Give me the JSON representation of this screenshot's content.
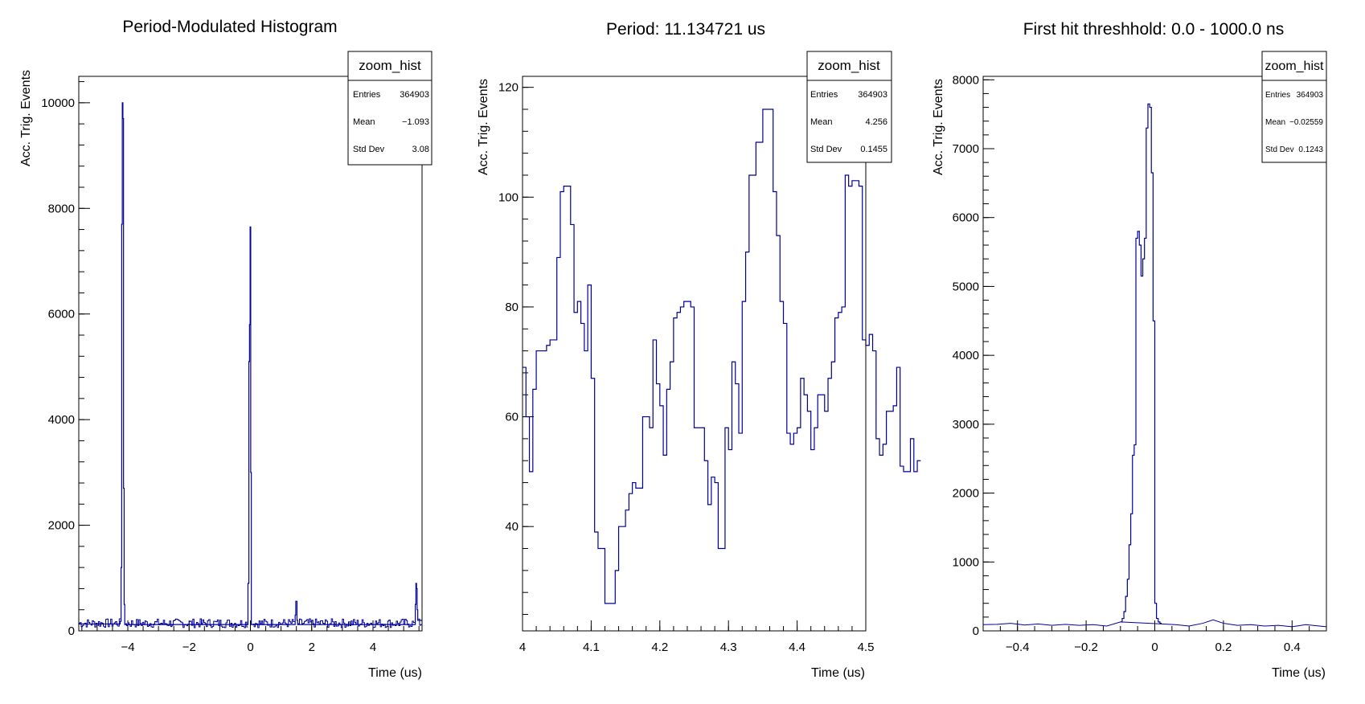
{
  "chart_data": [
    {
      "type": "histogram",
      "title": "Period-Modulated Histogram",
      "xlabel": "Time (us)",
      "ylabel": "Acc. Trig. Events",
      "xlim": [
        -5.6,
        5.6
      ],
      "ylim": [
        0,
        10500
      ],
      "xticks": [
        -4,
        -2,
        0,
        2,
        4
      ],
      "xtick_labels": [
        "−4",
        "−2",
        "0",
        "2",
        "4"
      ],
      "yticks": [
        0,
        2000,
        4000,
        6000,
        8000,
        10000
      ],
      "ytick_labels": [
        "0",
        "2000",
        "4000",
        "6000",
        "8000",
        "10000"
      ],
      "x_minor_step": 0.5,
      "y_minor_step": 400,
      "line_color": "#000099",
      "stats": {
        "name": "zoom_hist",
        "entries_label": "Entries",
        "entries": "364903",
        "mean_label": "Mean",
        "mean": "−1.093",
        "std_label": "Std Dev",
        "std": "3.08"
      },
      "series": [
        {
          "x_edges": [
            -5.6,
            -4.25,
            -4.22,
            -4.2,
            -4.18,
            -4.16,
            -4.14,
            -4.12,
            -4.1,
            -0.08,
            -0.05,
            -0.03,
            -0.01,
            0.01,
            0.03,
            1.46,
            1.48,
            1.52,
            1.54,
            5.38,
            5.4,
            5.42,
            5.44,
            5.46,
            5.6
          ],
          "values": [
            130,
            180,
            1200,
            7700,
            10000,
            9700,
            2700,
            500,
            120,
            900,
            5100,
            5800,
            7650,
            3000,
            120,
            300,
            560,
            200,
            120,
            500,
            900,
            800,
            400,
            200
          ]
        }
      ]
    },
    {
      "type": "histogram",
      "title": "Period: 11.134721 us",
      "xlabel": "Time (us)",
      "ylabel": "Acc. Trig. Events",
      "xlim": [
        4.0,
        4.5
      ],
      "ylim": [
        21,
        122
      ],
      "xticks": [
        4.0,
        4.1,
        4.2,
        4.3,
        4.4,
        4.5
      ],
      "xtick_labels": [
        "4",
        "4.1",
        "4.2",
        "4.3",
        "4.4",
        "4.5"
      ],
      "yticks": [
        40,
        60,
        80,
        100,
        120
      ],
      "ytick_labels": [
        "40",
        "60",
        "80",
        "100",
        "120"
      ],
      "x_minor_step": 0.02,
      "y_minor_step": 4,
      "line_color": "#000099",
      "stats": {
        "name": "zoom_hist",
        "entries_label": "Entries",
        "entries": "364903",
        "mean_label": "Mean",
        "mean": "4.256",
        "std_label": "Std Dev",
        "std": "0.1455"
      },
      "series": [
        {
          "x_start": 4.0,
          "bin_width": 0.005,
          "values": [
            69,
            60,
            50,
            65,
            72,
            72,
            72,
            73,
            74,
            74,
            89,
            101,
            102,
            102,
            95,
            79,
            81,
            77,
            72,
            84,
            67,
            39,
            36,
            36,
            26,
            26,
            26,
            32,
            40,
            40,
            43,
            46,
            48,
            47,
            47,
            60,
            60,
            58,
            74,
            66,
            62,
            53,
            65,
            70,
            78,
            79,
            80,
            81,
            81,
            80,
            58,
            58,
            58,
            52,
            44,
            49,
            48,
            36,
            36,
            58,
            54,
            70,
            66,
            57,
            81,
            90,
            104,
            104,
            110,
            110,
            116,
            116,
            116,
            101,
            93,
            81,
            77,
            57,
            55,
            57,
            58,
            67,
            64,
            61,
            54,
            58,
            64,
            64,
            61,
            67,
            70,
            78,
            79,
            80,
            104,
            102,
            103,
            103,
            102,
            74,
            73,
            75,
            72,
            56,
            53,
            55,
            61,
            61,
            62,
            69,
            51,
            50,
            50,
            56,
            50,
            52
          ]
        }
      ]
    },
    {
      "type": "histogram",
      "title": "First hit threshhold: 0.0 - 1000.0 ns",
      "xlabel": "Time (us)",
      "ylabel": "Acc. Trig. Events",
      "xlim": [
        -0.5,
        0.5
      ],
      "ylim": [
        0,
        8050
      ],
      "xticks": [
        -0.4,
        -0.2,
        0,
        0.2,
        0.4
      ],
      "xtick_labels": [
        "−0.4",
        "−0.2",
        "0",
        "0.2",
        "0.4"
      ],
      "yticks": [
        0,
        1000,
        2000,
        3000,
        4000,
        5000,
        6000,
        7000,
        8000
      ],
      "ytick_labels": [
        "0",
        "1000",
        "2000",
        "3000",
        "4000",
        "5000",
        "6000",
        "7000",
        "8000"
      ],
      "x_minor_step": 0.05,
      "y_minor_step": 200,
      "line_color": "#000099",
      "stats": {
        "name": "zoom_hist",
        "entries_label": "Entries",
        "entries": "364903",
        "mean_label": "Mean",
        "mean": "−0.02559",
        "std_label": "Std Dev",
        "std": "0.1243"
      },
      "series": [
        {
          "x_start": -0.1,
          "bin_width": 0.005,
          "values": [
            130,
            180,
            280,
            500,
            750,
            1250,
            1700,
            2550,
            2700,
            5700,
            5800,
            5600,
            5150,
            5400,
            5700,
            7300,
            7650,
            7600,
            6650,
            4500,
            400,
            180,
            130,
            110
          ]
        }
      ],
      "baseline_points": [
        [
          -0.5,
          90
        ],
        [
          -0.46,
          95
        ],
        [
          -0.42,
          110
        ],
        [
          -0.38,
          85
        ],
        [
          -0.34,
          100
        ],
        [
          -0.3,
          80
        ],
        [
          -0.26,
          95
        ],
        [
          -0.22,
          80
        ],
        [
          -0.18,
          90
        ],
        [
          -0.14,
          70
        ],
        [
          -0.1,
          130
        ],
        [
          0.02,
          100
        ],
        [
          0.06,
          90
        ],
        [
          0.1,
          70
        ],
        [
          0.14,
          110
        ],
        [
          0.17,
          160
        ],
        [
          0.2,
          110
        ],
        [
          0.24,
          80
        ],
        [
          0.28,
          90
        ],
        [
          0.32,
          70
        ],
        [
          0.36,
          80
        ],
        [
          0.4,
          60
        ],
        [
          0.44,
          90
        ],
        [
          0.48,
          70
        ],
        [
          0.5,
          60
        ]
      ]
    }
  ]
}
